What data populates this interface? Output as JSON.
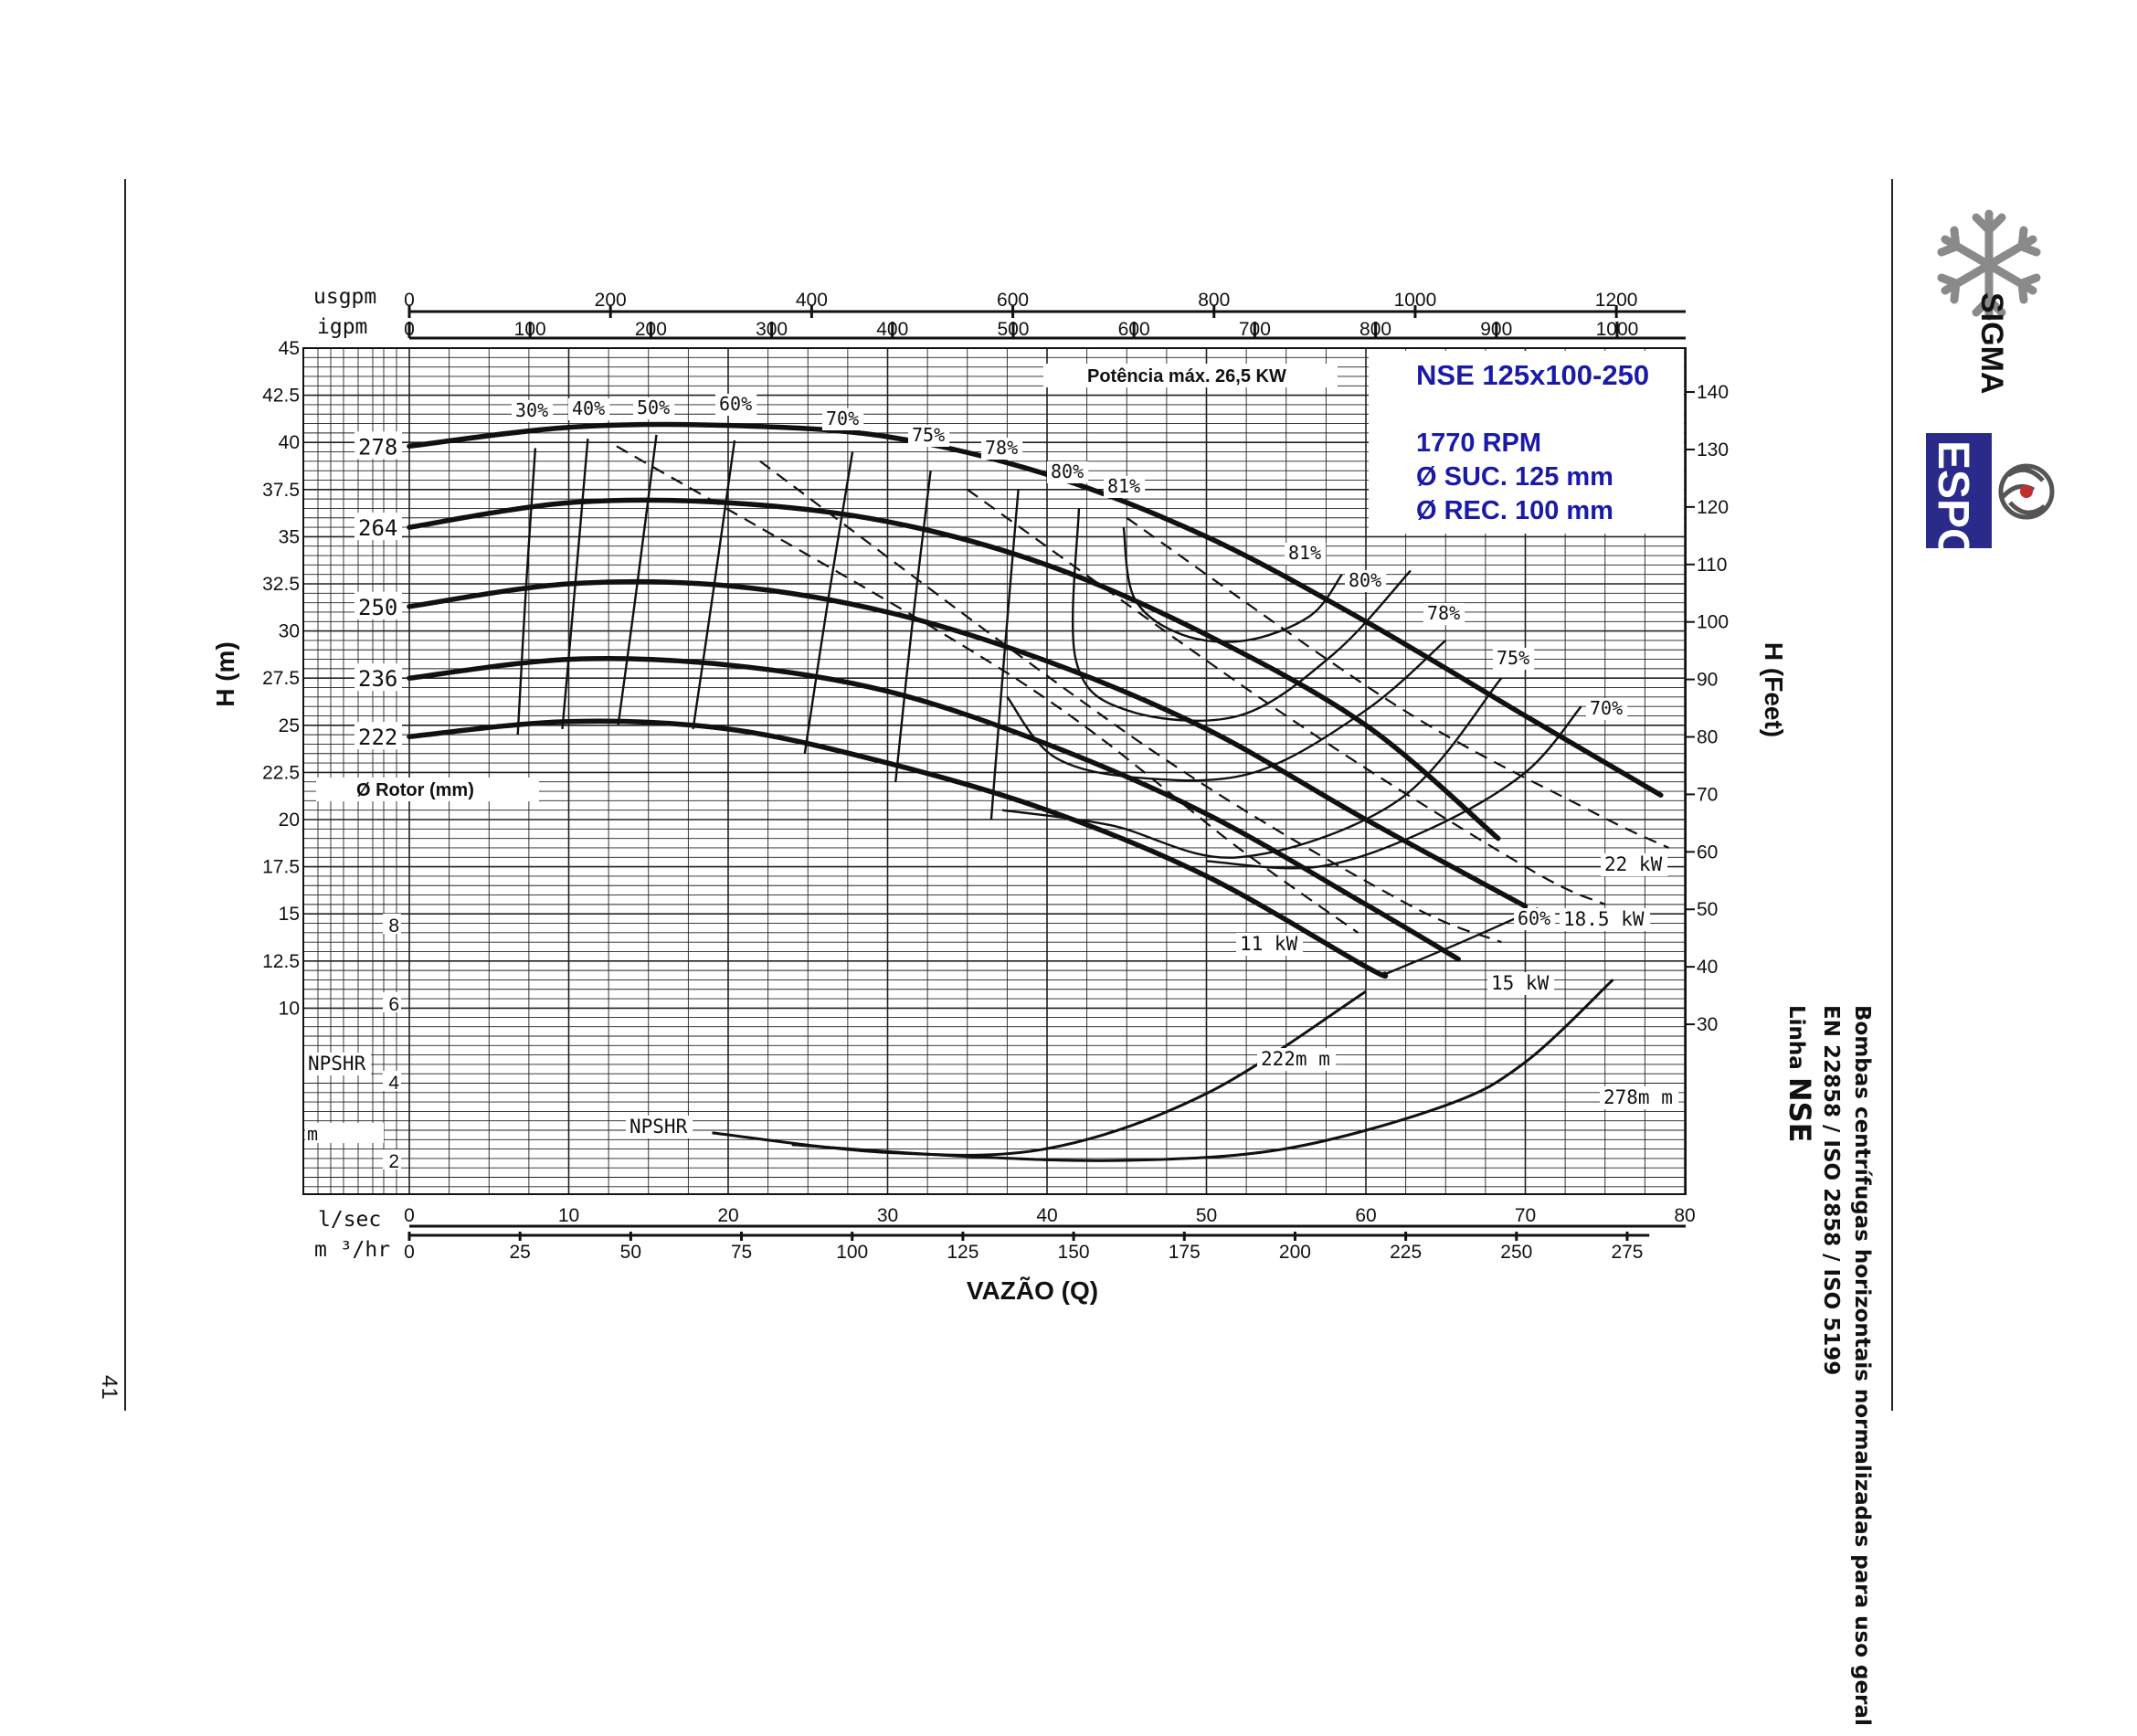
{
  "page": {
    "page_number": "41",
    "side_text": {
      "line1": "Bombas centrífugas horizontais normalizadas para uso geral",
      "line2": "EN 22858 / ISO 2858 / ISO 5199",
      "line3_prefix": "Linha",
      "line3_model": "NSE"
    },
    "logos": {
      "sigma": "SIGMA",
      "espo": "ESPO"
    }
  },
  "chart_data": {
    "type": "line",
    "title": "NSE 125x100-250",
    "info": [
      "1770 RPM",
      "Ø SUC. 125 mm",
      "Ø REC. 100 mm"
    ],
    "max_power_label": "Potência máx. 26,5 KW",
    "rotor_label": "Ø Rotor (mm)",
    "xlabel": "VAZÃO (Q)",
    "ylabel_left": "H (m)",
    "ylabel_right": "H (Feet)",
    "x_unit_lsec": "l/sec",
    "x_unit_m3hr": "m ³/hr",
    "top_unit_usgpm": "usgpm",
    "top_unit_igpm": "igpm",
    "npshr_axis_label": "NPSHR",
    "npshr_unit": "m",
    "npshr_curve_label": "NPSHR",
    "xlim_lsec": [
      0,
      80
    ],
    "ylim_m": [
      10,
      45
    ],
    "lsec_ticks": [
      0,
      10,
      20,
      30,
      40,
      50,
      60,
      70,
      80
    ],
    "m3hr_ticks": [
      0,
      25,
      50,
      75,
      100,
      125,
      150,
      175,
      200,
      225,
      250,
      275
    ],
    "usgpm_ticks": [
      0,
      200,
      400,
      600,
      800,
      1000,
      1200
    ],
    "igpm_ticks": [
      0,
      100,
      200,
      300,
      400,
      500,
      600,
      700,
      800,
      900,
      1000
    ],
    "h_ticks": [
      "45",
      "42.5",
      "40",
      "37.5",
      "35",
      "32.5",
      "30",
      "27.5",
      "25",
      "22.5",
      "20",
      "17.5",
      "15",
      "12.5",
      "10"
    ],
    "feet_ticks": [
      140,
      130,
      120,
      110,
      100,
      90,
      80,
      70,
      60,
      50,
      40,
      30
    ],
    "npshr_ticks": [
      8,
      6,
      4,
      2
    ],
    "series": [
      {
        "name": "278",
        "x": [
          0,
          10,
          20,
          30,
          40,
          50,
          60,
          70,
          78.5
        ],
        "y": [
          39.8,
          40.8,
          40.9,
          40.3,
          38.3,
          35.0,
          30.5,
          25.5,
          21.3
        ]
      },
      {
        "name": "264",
        "x": [
          0,
          10,
          20,
          30,
          40,
          50,
          60,
          68.3
        ],
        "y": [
          35.5,
          36.8,
          36.8,
          35.8,
          33.5,
          29.8,
          25.0,
          19.0
        ]
      },
      {
        "name": "250",
        "x": [
          0,
          10,
          20,
          30,
          40,
          50,
          60,
          70
        ],
        "y": [
          31.3,
          32.5,
          32.4,
          31.0,
          28.4,
          24.8,
          20.0,
          15.4
        ]
      },
      {
        "name": "236",
        "x": [
          0,
          10,
          20,
          30,
          40,
          50,
          60,
          65.8
        ],
        "y": [
          27.5,
          28.5,
          28.2,
          26.8,
          24.0,
          20.3,
          15.5,
          12.6
        ]
      },
      {
        "name": "222",
        "x": [
          0,
          10,
          20,
          30,
          40,
          50,
          60,
          61.2
        ],
        "y": [
          24.4,
          25.2,
          24.8,
          23.0,
          20.5,
          17.0,
          12.2,
          11.8
        ]
      }
    ],
    "efficiency_curves": [
      {
        "label": "30%",
        "x": [
          6.8,
          7.3,
          7.9
        ],
        "y": [
          24.5,
          32.0,
          39.7
        ]
      },
      {
        "label": "40%",
        "x": [
          9.6,
          10.4,
          11.2
        ],
        "y": [
          24.8,
          32.4,
          40.2
        ]
      },
      {
        "label": "50%",
        "x": [
          13.1,
          14.3,
          15.5
        ],
        "y": [
          25.0,
          32.5,
          40.4
        ]
      },
      {
        "label": "60%",
        "x": [
          17.8,
          19.1,
          20.4
        ],
        "y": [
          24.8,
          32.3,
          40.1
        ]
      },
      {
        "label": "70%",
        "x": [
          24.8,
          26.3,
          27.8
        ],
        "y": [
          23.5,
          31.8,
          39.5
        ]
      },
      {
        "label": "75%",
        "x": [
          30.5,
          31.5,
          32.7
        ],
        "y": [
          22.0,
          30.0,
          38.5
        ]
      },
      {
        "label": "78%",
        "x": [
          36.5,
          37.3,
          38.2
        ],
        "y": [
          20.0,
          28.5,
          37.5
        ]
      },
      {
        "label": "80%",
        "x": [
          42,
          41.8,
          45,
          52,
          58,
          62.8
        ],
        "y": [
          36.5,
          28.5,
          25.8,
          25.5,
          28.8,
          33.2
        ]
      },
      {
        "label": "81%",
        "x": [
          44.8,
          45.5,
          48.5,
          52.5,
          56.5,
          58.5
        ],
        "y": [
          35.5,
          31.7,
          29.8,
          29.5,
          30.8,
          33.0
        ]
      },
      {
        "label": "78%",
        "x": [
          37.5,
          40.5,
          46,
          53,
          60,
          65
        ],
        "y": [
          26.5,
          23.3,
          22.2,
          22.5,
          25.8,
          29.5
        ]
      },
      {
        "label": "75%",
        "x": [
          37.2,
          44,
          52,
          62,
          68.5
        ],
        "y": [
          20.5,
          19.7,
          18.0,
          21.0,
          27.5
        ]
      },
      {
        "label": "70%",
        "x": [
          50,
          57,
          64,
          70,
          73.5
        ],
        "y": [
          17.8,
          17.5,
          19.5,
          22.5,
          26.0
        ]
      },
      {
        "label": "60%",
        "x": [
          61.2,
          66,
          70.8
        ],
        "y": [
          11.8,
          13.5,
          15.3
        ]
      }
    ],
    "power_lines": [
      {
        "label": "11 kW",
        "x": [
          13,
          38,
          52,
          59.5
        ],
        "y": [
          39.8,
          27.5,
          18.5,
          14.0
        ]
      },
      {
        "label": "15 kW",
        "x": [
          22,
          46,
          62,
          68.5
        ],
        "y": [
          39.0,
          24.0,
          15.8,
          13.5
        ]
      },
      {
        "label": "18.5 kW",
        "x": [
          35,
          55,
          70,
          75
        ],
        "y": [
          37.5,
          25.5,
          17.5,
          15.5
        ]
      },
      {
        "label": "22 kW",
        "x": [
          45,
          62,
          74,
          79
        ],
        "y": [
          36.0,
          26.0,
          20.5,
          18.5
        ]
      }
    ],
    "npshr_series": [
      {
        "name": "222m m",
        "x": [
          19,
          30,
          40,
          50,
          60
        ],
        "y": [
          2.7,
          2.2,
          2.3,
          3.7,
          6.3
        ]
      },
      {
        "name": "278m m",
        "x": [
          24,
          35,
          45,
          55,
          65,
          70,
          75.5
        ],
        "y": [
          2.4,
          2.1,
          2.0,
          2.3,
          3.4,
          4.5,
          6.6
        ]
      }
    ],
    "grid": true,
    "legend": "none"
  }
}
